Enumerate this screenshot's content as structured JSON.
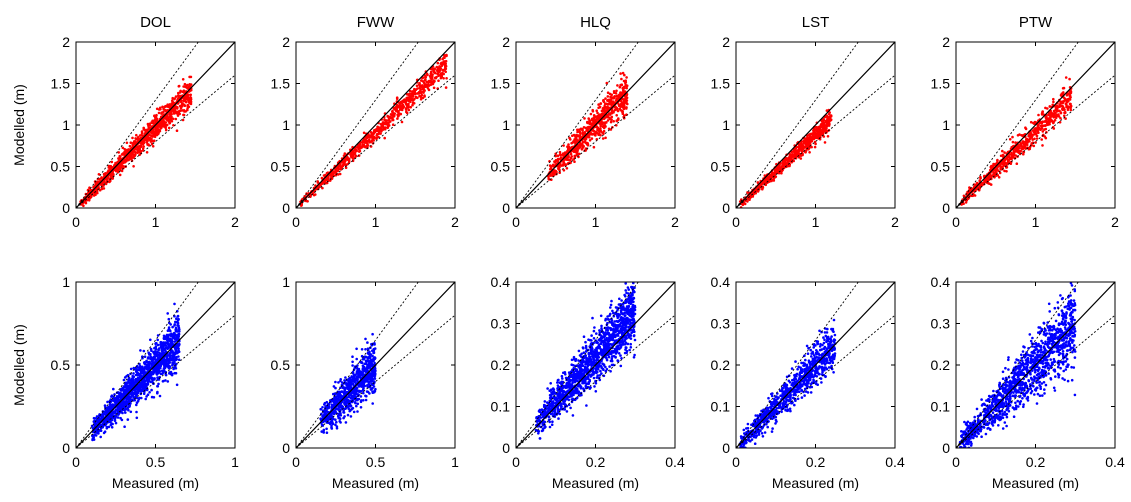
{
  "figure": {
    "ylabel": "Modelled (m)",
    "xlabel": "Measured (m)",
    "reference_lines": [
      "1:1",
      "upper envelope",
      "lower envelope"
    ]
  },
  "chart_data": [
    {
      "id": "DOL-top",
      "type": "scatter",
      "title": "DOL",
      "xlabel": "",
      "ylabel": "Modelled (m)",
      "xlim": [
        0,
        2
      ],
      "ylim": [
        0,
        2
      ],
      "xticks": [
        "0",
        "1",
        "2"
      ],
      "yticks": [
        "0",
        "0.5",
        "1",
        "1.5",
        "2"
      ],
      "series": [
        {
          "color": "#ff0000",
          "x_range": [
            0.05,
            1.45
          ],
          "slope": 0.97,
          "spread": 0.07,
          "points": 950
        }
      ],
      "grid": false
    },
    {
      "id": "FWW-top",
      "type": "scatter",
      "title": "FWW",
      "xlabel": "",
      "ylabel": "",
      "xlim": [
        0,
        2
      ],
      "ylim": [
        0,
        2
      ],
      "xticks": [
        "0",
        "1",
        "2"
      ],
      "yticks": [
        "0",
        "0.5",
        "1",
        "1.5",
        "2"
      ],
      "series": [
        {
          "color": "#ff0000",
          "x_range": [
            0.05,
            1.9
          ],
          "slope": 0.92,
          "spread": 0.06,
          "points": 700
        }
      ],
      "grid": false
    },
    {
      "id": "HLQ-top",
      "type": "scatter",
      "title": "HLQ",
      "xlabel": "",
      "ylabel": "",
      "xlim": [
        0,
        2
      ],
      "ylim": [
        0,
        2
      ],
      "xticks": [
        "0",
        "1",
        "2"
      ],
      "yticks": [
        "0",
        "0.5",
        "1",
        "1.5",
        "2"
      ],
      "series": [
        {
          "color": "#ff0000",
          "x_range": [
            0.4,
            1.4
          ],
          "slope": 1.0,
          "spread": 0.09,
          "points": 700
        }
      ],
      "grid": false
    },
    {
      "id": "LST-top",
      "type": "scatter",
      "title": "LST",
      "xlabel": "",
      "ylabel": "",
      "xlim": [
        0,
        2
      ],
      "ylim": [
        0,
        2
      ],
      "xticks": [
        "0",
        "1",
        "2"
      ],
      "yticks": [
        "0",
        "0.5",
        "1",
        "1.5",
        "2"
      ],
      "series": [
        {
          "color": "#ff0000",
          "x_range": [
            0.05,
            1.2
          ],
          "slope": 0.88,
          "spread": 0.05,
          "points": 650
        }
      ],
      "grid": false
    },
    {
      "id": "PTW-top",
      "type": "scatter",
      "title": "PTW",
      "xlabel": "",
      "ylabel": "",
      "xlim": [
        0,
        2
      ],
      "ylim": [
        0,
        2
      ],
      "xticks": [
        "0",
        "1",
        "2"
      ],
      "yticks": [
        "0",
        "0.5",
        "1",
        "1.5",
        "2"
      ],
      "series": [
        {
          "color": "#ff0000",
          "x_range": [
            0.05,
            1.45
          ],
          "slope": 0.93,
          "spread": 0.07,
          "points": 650
        }
      ],
      "grid": false
    },
    {
      "id": "DOL-bottom",
      "type": "scatter",
      "title": "",
      "xlabel": "Measured (m)",
      "ylabel": "Modelled (m)",
      "xlim": [
        0,
        1
      ],
      "ylim": [
        0,
        1
      ],
      "xticks": [
        "0",
        "0.5",
        "1"
      ],
      "yticks": [
        "0",
        "0.5",
        "1"
      ],
      "series": [
        {
          "color": "#0000ff",
          "x_range": [
            0.1,
            0.65
          ],
          "slope": 1.0,
          "spread": 0.06,
          "points": 1400
        }
      ],
      "grid": false
    },
    {
      "id": "FWW-bottom",
      "type": "scatter",
      "title": "",
      "xlabel": "Measured (m)",
      "ylabel": "",
      "xlim": [
        0,
        1
      ],
      "ylim": [
        0,
        1
      ],
      "xticks": [
        "0",
        "0.5",
        "1"
      ],
      "yticks": [
        "0",
        "0.5",
        "1"
      ],
      "series": [
        {
          "color": "#0000ff",
          "x_range": [
            0.15,
            0.5
          ],
          "slope": 1.0,
          "spread": 0.06,
          "points": 800
        }
      ],
      "grid": false
    },
    {
      "id": "HLQ-bottom",
      "type": "scatter",
      "title": "",
      "xlabel": "Measured (m)",
      "ylabel": "",
      "xlim": [
        0,
        0.4
      ],
      "ylim": [
        0,
        0.4
      ],
      "xticks": [
        "0",
        "0.2",
        "0.4"
      ],
      "yticks": [
        "0",
        "0.1",
        "0.2",
        "0.3",
        "0.4"
      ],
      "series": [
        {
          "color": "#0000ff",
          "x_range": [
            0.05,
            0.3
          ],
          "slope": 1.1,
          "spread": 0.03,
          "points": 1400
        }
      ],
      "grid": false
    },
    {
      "id": "LST-bottom",
      "type": "scatter",
      "title": "",
      "xlabel": "Measured (m)",
      "ylabel": "",
      "xlim": [
        0,
        0.4
      ],
      "ylim": [
        0,
        0.4
      ],
      "xticks": [
        "0",
        "0.2",
        "0.4"
      ],
      "yticks": [
        "0",
        "0.1",
        "0.2",
        "0.3",
        "0.4"
      ],
      "series": [
        {
          "color": "#0000ff",
          "x_range": [
            0.01,
            0.25
          ],
          "slope": 1.0,
          "spread": 0.022,
          "points": 900
        }
      ],
      "grid": false
    },
    {
      "id": "PTW-bottom",
      "type": "scatter",
      "title": "",
      "xlabel": "Measured (m)",
      "ylabel": "",
      "xlim": [
        0,
        0.4
      ],
      "ylim": [
        0,
        0.4
      ],
      "xticks": [
        "0",
        "0.2",
        "0.4"
      ],
      "yticks": [
        "0",
        "0.1",
        "0.2",
        "0.3",
        "0.4"
      ],
      "series": [
        {
          "color": "#0000ff",
          "x_range": [
            0.01,
            0.3
          ],
          "slope": 1.0,
          "spread": 0.035,
          "points": 1300
        }
      ],
      "grid": false
    }
  ]
}
